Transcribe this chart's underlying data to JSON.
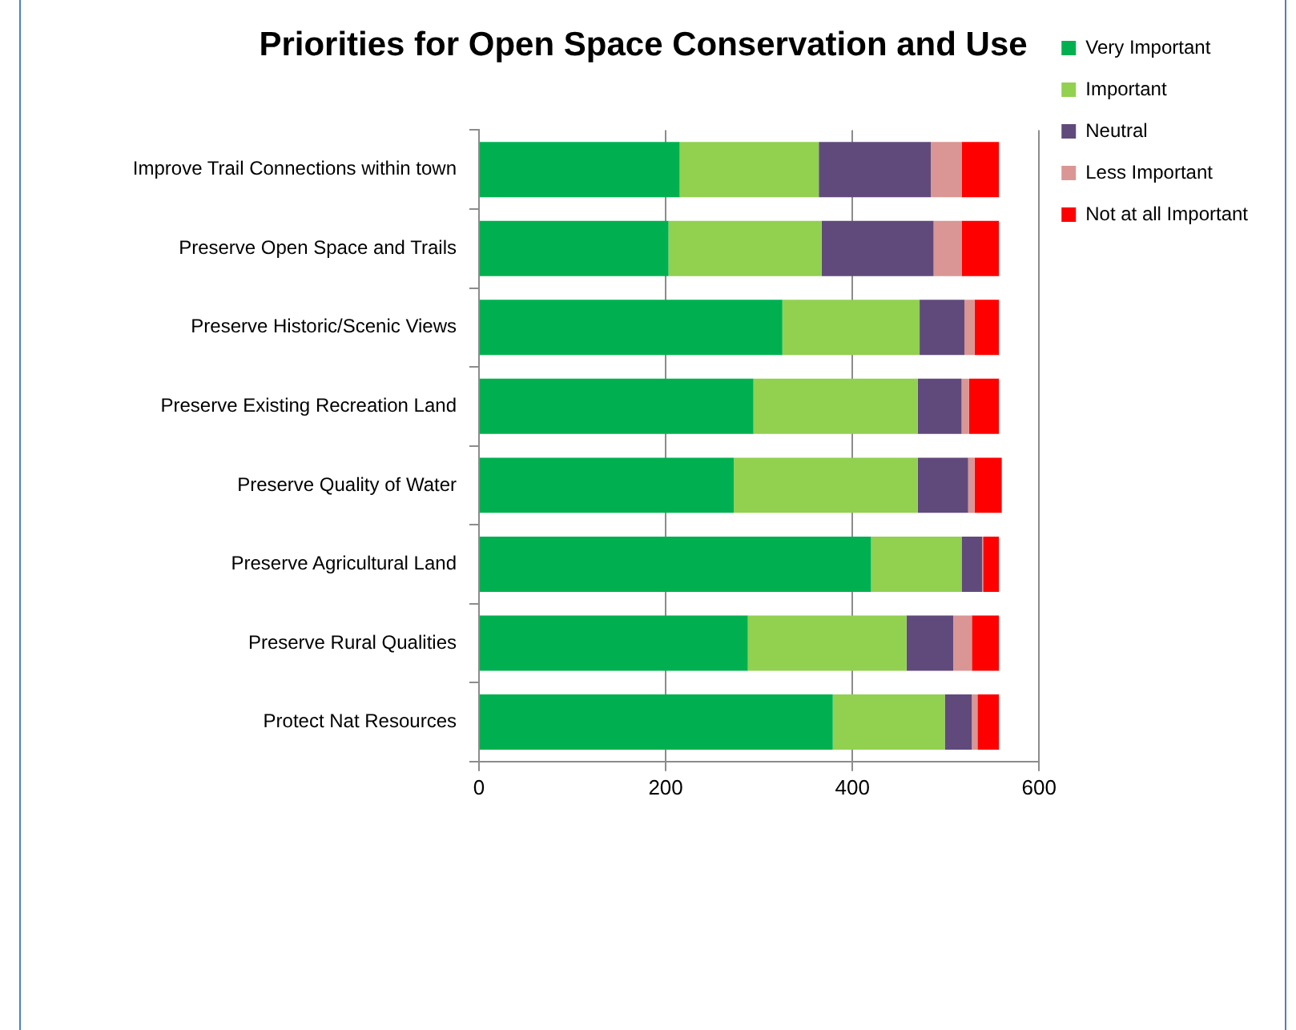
{
  "chart_data": {
    "type": "bar",
    "orientation": "horizontal",
    "stacked": true,
    "title": "Priorities for Open Space Conservation and Use",
    "categories": [
      "Improve Trail Connections within town",
      "Preserve Open Space and Trails",
      "Preserve Historic/Scenic Views",
      "Preserve Existing Recreation Land",
      "Preserve Quality of Water",
      "Preserve Agricultural Land",
      "Preserve Rural Qualities",
      "Protect Nat Resources"
    ],
    "series": [
      {
        "name": "Very Important",
        "color": "#00b050",
        "values": [
          215,
          203,
          325,
          294,
          273,
          420,
          288,
          379
        ]
      },
      {
        "name": "Important",
        "color": "#92d050",
        "values": [
          149,
          164,
          147,
          176,
          197,
          97,
          170,
          120
        ]
      },
      {
        "name": "Neutral",
        "color": "#604a7b",
        "values": [
          120,
          120,
          48,
          47,
          54,
          22,
          50,
          29
        ]
      },
      {
        "name": "Less Important",
        "color": "#d99694",
        "values": [
          33,
          30,
          11,
          8,
          7,
          1,
          20,
          6
        ]
      },
      {
        "name": "Not at all Important",
        "color": "#ff0000",
        "values": [
          40,
          40,
          26,
          32,
          29,
          17,
          29,
          23
        ]
      }
    ],
    "xlim": [
      0,
      600
    ],
    "xticks": [
      0,
      200,
      400,
      600
    ],
    "grid": "x",
    "legend": "right"
  }
}
